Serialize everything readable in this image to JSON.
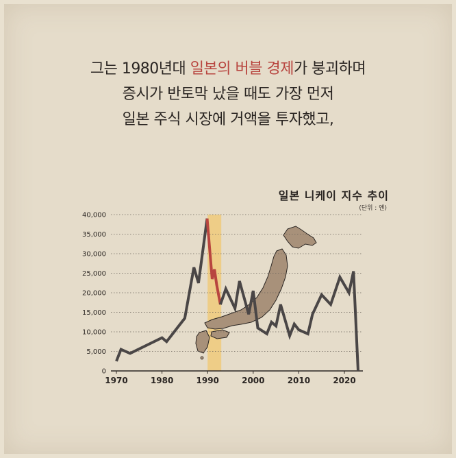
{
  "headline": {
    "line1_pre": "그는 1980년대 ",
    "line1_highlight": "일본의 버블 경제",
    "line1_post": "가 붕괴하며",
    "line2": "증시가 반토막 났을 때도 가장 먼저",
    "line3": "일본 주식 시장에 거액을 투자했고,"
  },
  "colors": {
    "background": "#e5dcca",
    "text": "#2a2522",
    "highlight": "#b8453f",
    "line_main": "#4a4646",
    "line_crash": "#b8453f",
    "band": "#f0c870",
    "map_fill": "#a8917a"
  },
  "icons": [
    "japan-map-icon"
  ],
  "chart_data": {
    "type": "line",
    "title": "일본 니케이 지수 추이",
    "unit": "(단위 : 엔)",
    "xlim": [
      1970,
      2023
    ],
    "ylim": [
      0,
      40000
    ],
    "yticks": [
      0,
      5000,
      10000,
      15000,
      20000,
      25000,
      30000,
      35000,
      40000
    ],
    "ytick_labels": [
      "0",
      "5,000",
      "10,000",
      "15,000",
      "20,000",
      "25,000",
      "30,000",
      "35,000",
      "40,000"
    ],
    "xticks": [
      1970,
      1980,
      1990,
      2000,
      2010,
      2020
    ],
    "xtick_labels": [
      "1970",
      "1980",
      "1990",
      "2000",
      "2010",
      "2020"
    ],
    "grid": "horizontal dotted",
    "highlight_band": [
      1990,
      1993
    ],
    "series": [
      {
        "role": "main",
        "x": [
          1970,
          1971,
          1973,
          1980,
          1981,
          1985,
          1987,
          1988,
          1989.9
        ],
        "y": [
          2500,
          5500,
          4500,
          8500,
          7500,
          13500,
          26500,
          22500,
          39000
        ]
      },
      {
        "role": "crash",
        "x": [
          1989.9,
          1991,
          1991.5,
          1992,
          1992.8
        ],
        "y": [
          39000,
          23500,
          26000,
          22000,
          17000
        ]
      },
      {
        "role": "main",
        "x": [
          1992.8,
          1994,
          1996,
          1997,
          1999,
          2000,
          2001,
          2003,
          2004,
          2005,
          2006,
          2008,
          2009,
          2010,
          2012,
          2013,
          2015,
          2017,
          2019,
          2021,
          2022,
          2023
        ],
        "y": [
          17000,
          21000,
          16000,
          23000,
          14500,
          20500,
          11000,
          9500,
          12500,
          11500,
          17000,
          9000,
          12000,
          10500,
          9500,
          14500,
          19500,
          17000,
          24000,
          20000,
          25500,
          0
        ]
      }
    ]
  }
}
